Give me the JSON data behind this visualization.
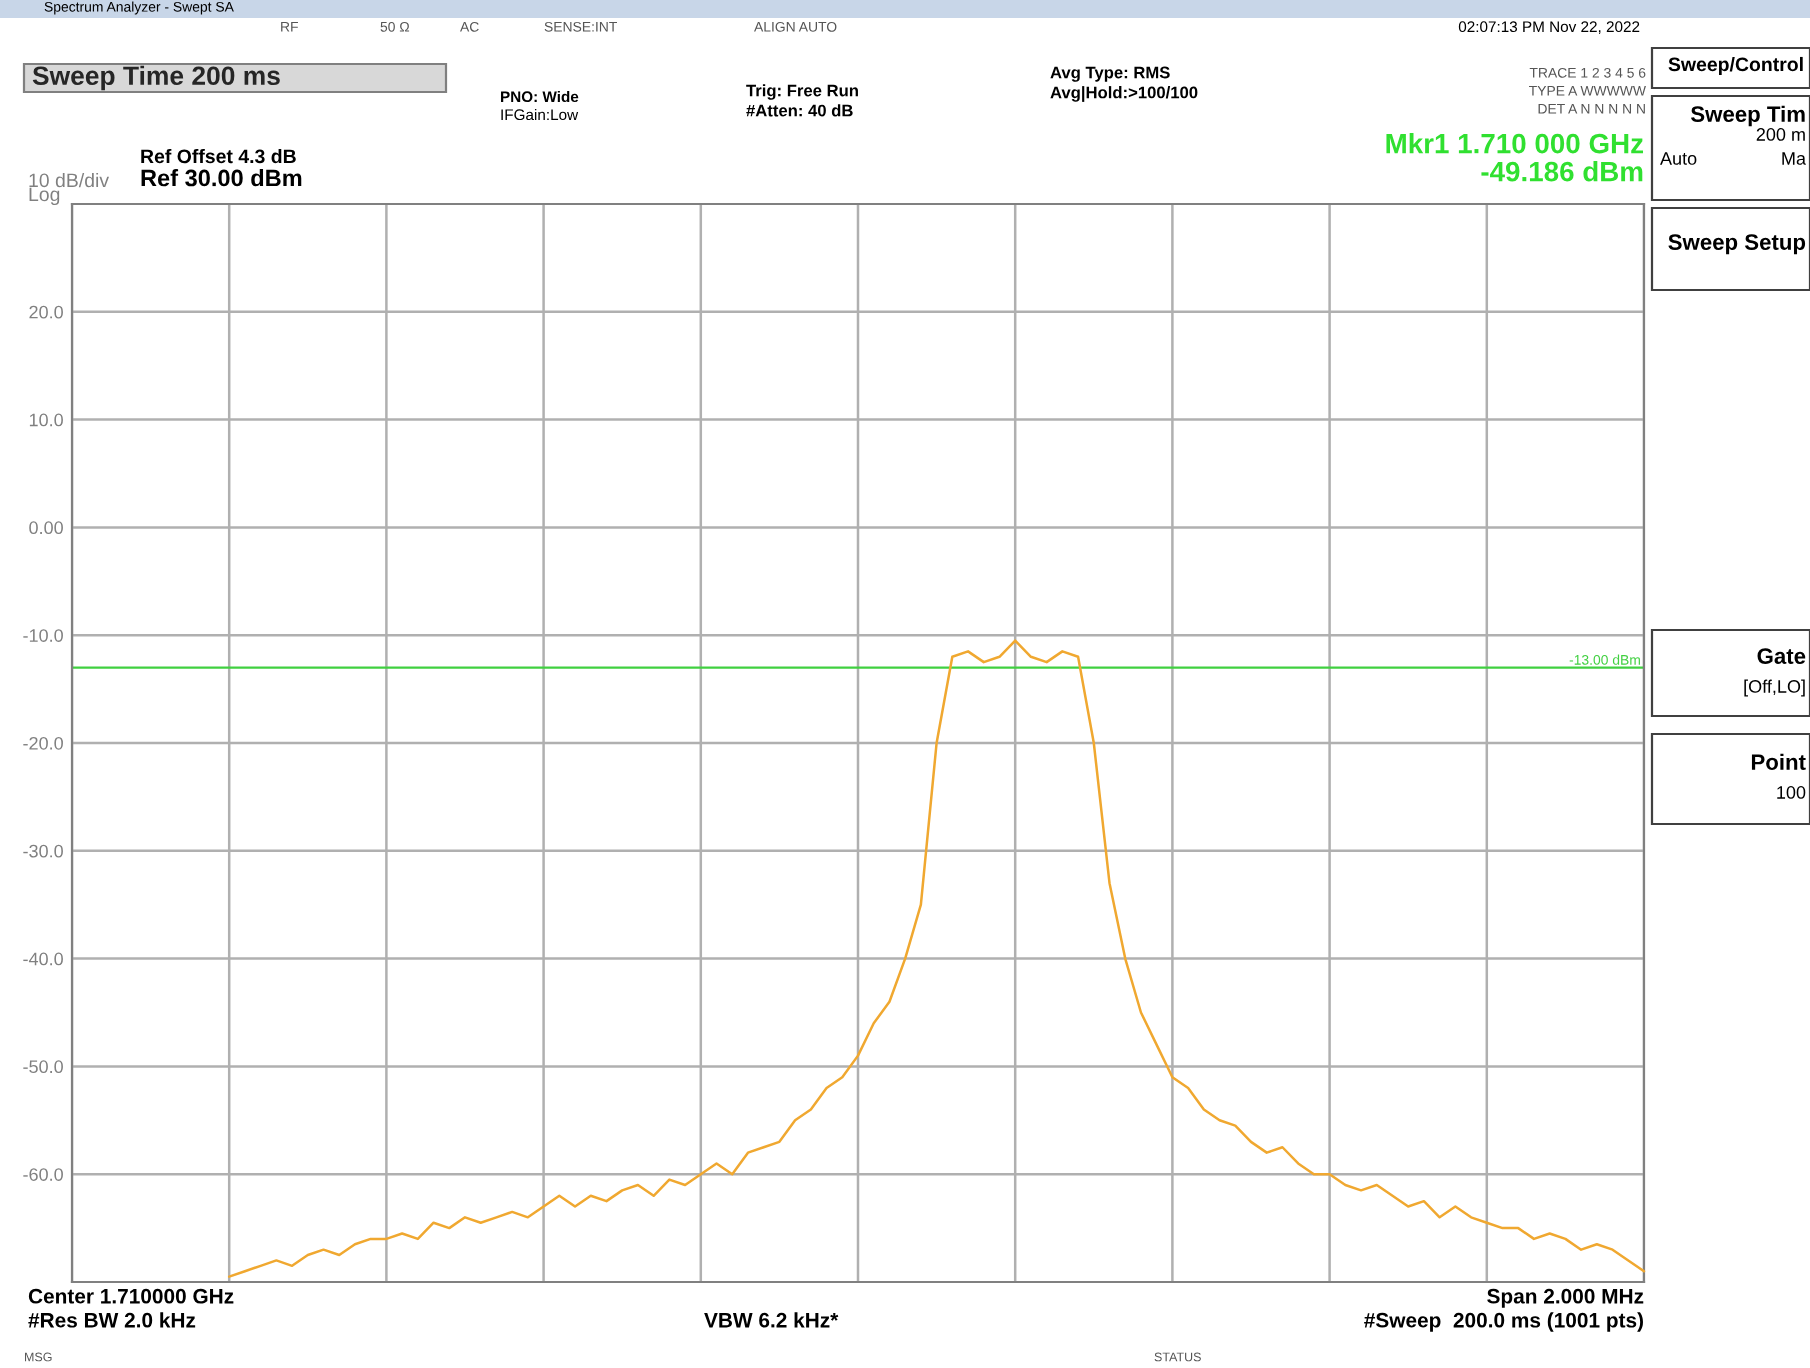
{
  "chart_data": {
    "type": "line",
    "title": "Sweep Time 200 ms",
    "categories": [
      null,
      null,
      null,
      null,
      null,
      null,
      null,
      null,
      null,
      null,
      null,
      null,
      null,
      null,
      null,
      null,
      null,
      null,
      null,
      null,
      null,
      null,
      null,
      null,
      null,
      null,
      null,
      null,
      null,
      null,
      null,
      null,
      null,
      null,
      null,
      null,
      null,
      null,
      null,
      null,
      null,
      null,
      null,
      null,
      null,
      null,
      null,
      null,
      null,
      null,
      null,
      null,
      null,
      null,
      null,
      null,
      null,
      null,
      null,
      null,
      null,
      null,
      null,
      null,
      null,
      null,
      null,
      null,
      null,
      null,
      null,
      null,
      null,
      null,
      null,
      null,
      null,
      null,
      null,
      null,
      null,
      null,
      null,
      null,
      null,
      null,
      null,
      null,
      null,
      null,
      null,
      null,
      null,
      null,
      null,
      null,
      null,
      null,
      null,
      null,
      null
    ],
    "series": [
      {
        "color": "#f0a830",
        "values": [
          null,
          null,
          null,
          null,
          null,
          null,
          null,
          null,
          null,
          null,
          -69.5,
          -69,
          -68.5,
          -68,
          -68.5,
          -67.5,
          -67,
          -67.5,
          -66.5,
          -66,
          -66,
          -65.5,
          -66,
          -64.5,
          -65,
          -64,
          -64.5,
          -64,
          -63.5,
          -64,
          -63,
          -62,
          -63,
          -62,
          -62.5,
          -61.5,
          -61,
          -62,
          -60.5,
          -61,
          -60,
          -59,
          -60,
          -58,
          -57.5,
          -57,
          -55,
          -54,
          -52,
          -51,
          -49,
          -46,
          -44,
          -40,
          -35,
          -20,
          -12,
          -11.5,
          -12.5,
          -12,
          -10.5,
          -12,
          -12.5,
          -11.5,
          -12,
          -20,
          -33,
          -40,
          -45,
          -48,
          -51,
          -52,
          -54,
          -55,
          -55.5,
          -57,
          -58,
          -57.5,
          -59,
          -60,
          -60,
          -61,
          -61.5,
          -61,
          -62,
          -63,
          -62.5,
          -64,
          -63,
          -64,
          -64.5,
          -65,
          -65,
          -66,
          -65.5,
          -66,
          -67,
          -66.5,
          -67,
          -68,
          -69
        ]
      }
    ],
    "ylim": [
      -70,
      30
    ],
    "yticks": [
      {
        "value": 20,
        "label": "20.0"
      },
      {
        "value": 10,
        "label": "10.0"
      },
      {
        "value": 0,
        "label": "0.00"
      },
      {
        "value": -10,
        "label": "-10.0"
      },
      {
        "value": -20,
        "label": "-20.0"
      },
      {
        "value": -30,
        "label": "-30.0"
      },
      {
        "value": -40,
        "label": "-40.0"
      },
      {
        "value": -50,
        "label": "-50.0"
      },
      {
        "value": -60,
        "label": "-60.0"
      }
    ],
    "tick_labels": "y",
    "grid": true,
    "line_style": "solid",
    "marker": "none",
    "ref_lines": [
      {
        "axis": "y",
        "value": -13,
        "label": "-13.00 dBm",
        "color": "#40d040"
      }
    ],
    "annotations": [
      "Spectrum Analyzer - Swept SA",
      "RF",
      "50 Ω",
      "AC",
      "SENSE:INT",
      "ALIGN AUTO",
      "02:07:13 PM Nov 22, 2022",
      "PNO: Wide",
      "IFGain:Low",
      "Trig: Free Run",
      "#Atten: 40 dB",
      "Avg Type: RMS",
      "Avg|Hold:>100/100",
      "TRACE 1 2 3 4 5 6",
      "TYPE A WWWWW",
      "DET A N N N N N",
      "Mkr1 1.710 000 GHz",
      "-49.186 dBm",
      "Ref Offset 4.3 dB",
      "Ref 30.00 dBm",
      "10 dB/div",
      "Log",
      "Center 1.710000 GHz",
      "#Res BW 2.0 kHz",
      "VBW 6.2 kHz*",
      "Span 2.000 MHz",
      "#Sweep  200.0 ms (1001 pts)",
      "MSG",
      "STATUS",
      "Sweep/Control",
      "Sweep Tim",
      "200 m",
      "Auto",
      "Ma",
      "Sweep Setup",
      "Gate",
      "[Off,LO]",
      "Point",
      "100"
    ]
  }
}
